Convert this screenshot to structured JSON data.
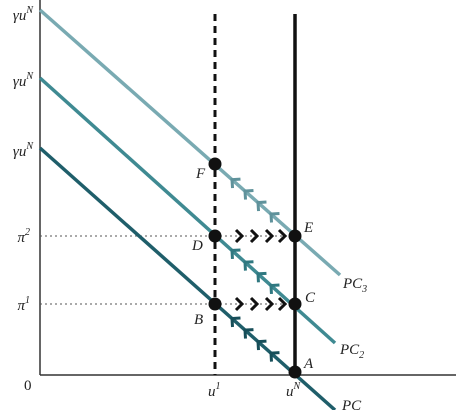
{
  "y_axis": {
    "labels": [
      {
        "text": "γu",
        "sup": "N"
      },
      {
        "text": "γu",
        "sup": "N"
      },
      {
        "text": "γu",
        "sup": "N"
      },
      {
        "text": "π",
        "sup": "2"
      },
      {
        "text": "π",
        "sup": "1"
      }
    ],
    "origin": "0"
  },
  "x_axis": {
    "labels": [
      {
        "text": "u",
        "sup": "1"
      },
      {
        "text": "u",
        "sup": "N"
      }
    ]
  },
  "points": [
    "F",
    "D",
    "E",
    "B",
    "C",
    "A"
  ],
  "curves": [
    {
      "text": "PC",
      "sub": "3"
    },
    {
      "text": "PC",
      "sub": "2"
    },
    {
      "text": "PC"
    }
  ]
}
